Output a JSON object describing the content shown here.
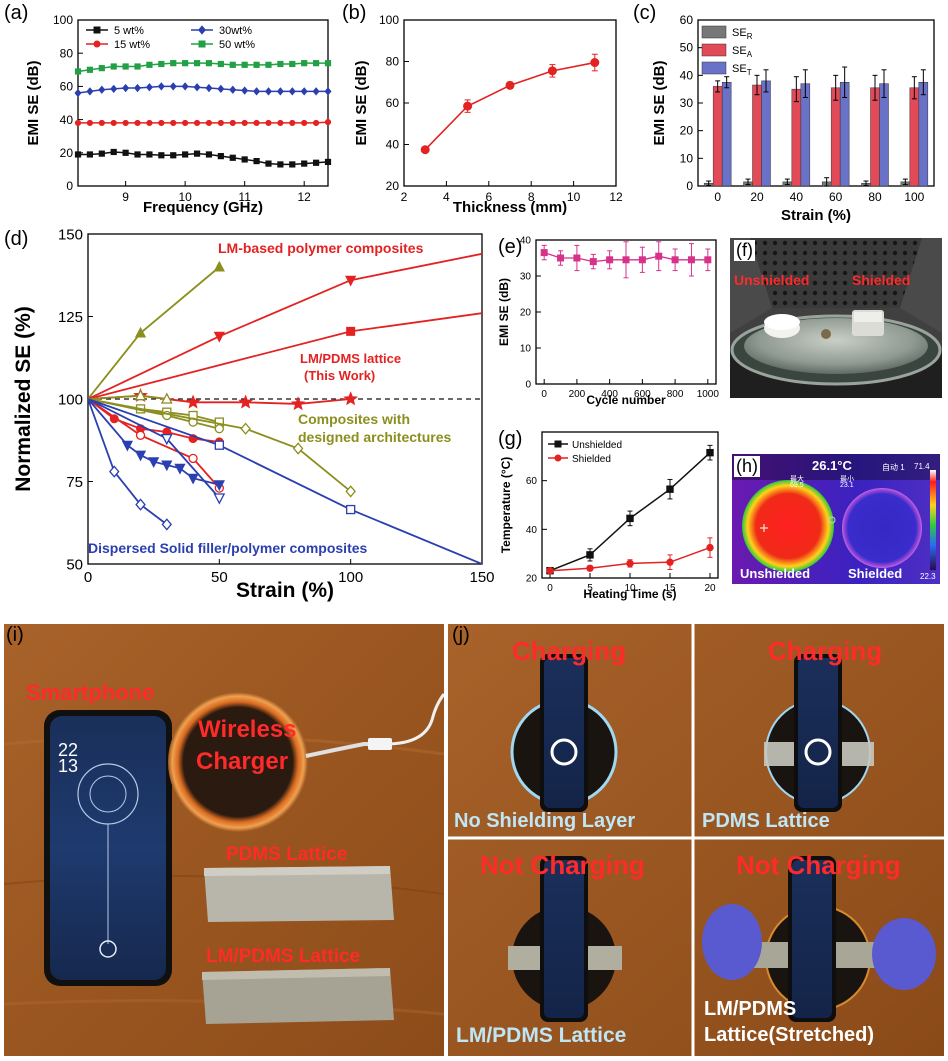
{
  "figure": {
    "panel_letters": [
      "(a)",
      "(b)",
      "(c)",
      "(d)",
      "(e)",
      "(f)",
      "(g)",
      "(h)",
      "(i)",
      "(j)"
    ]
  },
  "chart_data": [
    {
      "id": "a",
      "type": "line",
      "xlabel": "Frequency (GHz)",
      "ylabel": "EMI SE (dB)",
      "xlim": [
        8.2,
        12.4
      ],
      "ylim": [
        0,
        100
      ],
      "xticks": [
        8,
        9,
        10,
        11,
        12
      ],
      "yticks": [
        0,
        20,
        40,
        60,
        80,
        100
      ],
      "legend_placement": "top-left, two columns",
      "x": [
        8.2,
        8.4,
        8.6,
        8.8,
        9.0,
        9.2,
        9.4,
        9.6,
        9.8,
        10.0,
        10.2,
        10.4,
        10.6,
        10.8,
        11.0,
        11.2,
        11.4,
        11.6,
        11.8,
        12.0,
        12.2,
        12.4
      ],
      "series": [
        {
          "name": "5 wt%",
          "color": "#111111",
          "marker": "square",
          "values": [
            19,
            19,
            19.5,
            20.5,
            20,
            19,
            19,
            18.5,
            18.5,
            19,
            19.5,
            19,
            18,
            17,
            16,
            15,
            13.5,
            13,
            13,
            13.5,
            14,
            14.5
          ]
        },
        {
          "name": "15 wt%",
          "color": "#e32222",
          "marker": "circle",
          "values": [
            38,
            38,
            38,
            38,
            38,
            38,
            38,
            38,
            38,
            38,
            38,
            38,
            38,
            38,
            38,
            38,
            38,
            38,
            38,
            38,
            38,
            38.5
          ]
        },
        {
          "name": "30wt%",
          "color": "#2b3fb0",
          "marker": "diamond",
          "values": [
            56,
            57,
            58,
            58.5,
            59,
            59,
            59.5,
            60,
            60,
            60,
            59.5,
            59,
            58.5,
            58,
            57.5,
            57,
            57,
            57,
            57,
            57,
            57,
            57
          ]
        },
        {
          "name": "50 wt%",
          "color": "#22a046",
          "marker": "square",
          "values": [
            69,
            70,
            71,
            72,
            72,
            72,
            73,
            73.5,
            74,
            74,
            74,
            74,
            73.5,
            73,
            73,
            73,
            73,
            73.5,
            73.5,
            74,
            74,
            74
          ]
        }
      ]
    },
    {
      "id": "b",
      "type": "line",
      "xlabel": "Thickness (mm)",
      "ylabel": "EMI SE (dB)",
      "xlim": [
        2,
        12
      ],
      "ylim": [
        20,
        100
      ],
      "xticks": [
        2,
        4,
        6,
        8,
        10,
        12
      ],
      "yticks": [
        20,
        40,
        60,
        80,
        100
      ],
      "series": [
        {
          "name": "",
          "color": "#e32222",
          "marker": "circle",
          "x": [
            3,
            5,
            7,
            9,
            11
          ],
          "values": [
            37.5,
            58.5,
            68.5,
            75.5,
            79.5
          ],
          "errors": [
            0,
            3,
            1.5,
            3,
            4
          ]
        }
      ]
    },
    {
      "id": "c",
      "type": "bar",
      "xlabel": "Strain (%)",
      "ylabel": "EMI SE (dB)",
      "ylim": [
        0,
        60
      ],
      "yticks": [
        0,
        10,
        20,
        30,
        40,
        50,
        60
      ],
      "categories": [
        "0",
        "20",
        "40",
        "60",
        "80",
        "100"
      ],
      "legend_placement": "top-left",
      "series": [
        {
          "name": "SE",
          "subscript": "R",
          "color": "#777777",
          "values": [
            1,
            1.5,
            1.5,
            1.5,
            1,
            1.5
          ],
          "errors": [
            0.8,
            1,
            1,
            1.5,
            0.8,
            1
          ]
        },
        {
          "name": "SE",
          "subscript": "A",
          "color": "#e24a57",
          "values": [
            36,
            36.5,
            35,
            35.5,
            35.5,
            35.5
          ],
          "errors": [
            2,
            3.5,
            4.5,
            4.5,
            4.5,
            4
          ]
        },
        {
          "name": "SE",
          "subscript": "T",
          "color": "#6a72c8",
          "values": [
            37.5,
            38,
            37,
            37.5,
            37,
            37.5
          ],
          "errors": [
            2,
            4,
            5,
            5.5,
            5,
            4.5
          ]
        }
      ]
    },
    {
      "id": "d",
      "type": "line",
      "xlabel": "Strain (%)",
      "ylabel": "Normalized SE (%)",
      "xlim": [
        0,
        150
      ],
      "ylim": [
        50,
        150
      ],
      "xticks": [
        0,
        50,
        100,
        150
      ],
      "yticks": [
        50,
        75,
        100,
        125,
        150
      ],
      "annotations": [
        {
          "text": "LM-based polymer composites",
          "color": "#e32222"
        },
        {
          "text": "LM/PDMS lattice",
          "color": "#e32222"
        },
        {
          "text": "(This Work)",
          "color": "#e32222"
        },
        {
          "text": "Composites with",
          "color": "#8c8f1e"
        },
        {
          "text": "designed architectures",
          "color": "#8c8f1e"
        },
        {
          "text": "Dispersed Solid filler/polymer composites",
          "color": "#2b3fb0"
        }
      ],
      "series": [
        {
          "name": "",
          "color": "#8c8f1e",
          "marker": "triangle-up",
          "x": [
            0,
            20,
            50
          ],
          "values": [
            100,
            120,
            140
          ]
        },
        {
          "name": "",
          "color": "#e32222",
          "marker": "triangle-down",
          "x": [
            0,
            50,
            100,
            150
          ],
          "values": [
            100,
            119,
            136,
            144
          ]
        },
        {
          "name": "",
          "color": "#e32222",
          "marker": "square",
          "x": [
            0,
            100,
            150
          ],
          "values": [
            100,
            120.5,
            126
          ]
        },
        {
          "name": "",
          "color": "#e32222",
          "marker": "star",
          "x": [
            0,
            20,
            40,
            60,
            80,
            100
          ],
          "values": [
            100,
            101,
            99,
            99,
            98.5,
            100
          ]
        },
        {
          "name": "",
          "color": "#8c8f1e",
          "marker": "triangle-up-open",
          "x": [
            0,
            20,
            30
          ],
          "values": [
            100,
            101,
            100
          ]
        },
        {
          "name": "",
          "color": "#8c8f1e",
          "marker": "square-open",
          "x": [
            0,
            20,
            30,
            40,
            50
          ],
          "values": [
            100,
            97,
            96,
            95,
            93
          ]
        },
        {
          "name": "",
          "color": "#8c8f1e",
          "marker": "circle-open",
          "x": [
            0,
            30,
            40,
            50
          ],
          "values": [
            100,
            95,
            93,
            91
          ]
        },
        {
          "name": "",
          "color": "#8c8f1e",
          "marker": "diamond-open",
          "x": [
            0,
            60,
            80,
            100
          ],
          "values": [
            100,
            91,
            85,
            72
          ]
        },
        {
          "name": "",
          "color": "#e32222",
          "marker": "circle",
          "x": [
            0,
            10,
            20,
            30,
            40,
            50
          ],
          "values": [
            100,
            94,
            91,
            90,
            88,
            87
          ]
        },
        {
          "name": "",
          "color": "#e32222",
          "marker": "circle-open",
          "x": [
            0,
            20,
            40,
            50
          ],
          "values": [
            100,
            89,
            82,
            73
          ]
        },
        {
          "name": "",
          "color": "#2b3fb0",
          "marker": "triangle-down",
          "x": [
            0,
            15,
            20,
            25,
            30,
            35,
            40,
            50
          ],
          "values": [
            100,
            86,
            83,
            81,
            80,
            79,
            76,
            74
          ]
        },
        {
          "name": "",
          "color": "#2b3fb0",
          "marker": "triangle-down-open",
          "x": [
            0,
            30,
            50
          ],
          "values": [
            100,
            88,
            70
          ]
        },
        {
          "name": "",
          "color": "#2b3fb0",
          "marker": "square-open",
          "x": [
            0,
            50,
            100,
            150
          ],
          "values": [
            100,
            86,
            66.5,
            50
          ]
        },
        {
          "name": "",
          "color": "#2b3fb0",
          "marker": "diamond-open",
          "x": [
            0,
            10,
            20,
            30
          ],
          "values": [
            100,
            78,
            68,
            62
          ]
        }
      ],
      "reference_line": {
        "y": 100,
        "style": "dashed",
        "color": "#111111"
      }
    },
    {
      "id": "e",
      "type": "line",
      "xlabel": "Cycle number",
      "ylabel": "EMI SE (dB)",
      "xlim": [
        -50,
        1050
      ],
      "ylim": [
        0,
        40
      ],
      "xticks": [
        0,
        200,
        400,
        600,
        800,
        1000
      ],
      "yticks": [
        0,
        10,
        20,
        30,
        40
      ],
      "series": [
        {
          "name": "",
          "color": "#d6328a",
          "marker": "square",
          "x": [
            0,
            100,
            200,
            300,
            400,
            500,
            600,
            700,
            800,
            900,
            1000
          ],
          "values": [
            36.5,
            35,
            35,
            34,
            34.5,
            34.5,
            34.5,
            35.5,
            34.5,
            34.5,
            34.5
          ],
          "errors": [
            2,
            2,
            3.5,
            2,
            2.5,
            5,
            3.5,
            4,
            3,
            4.5,
            3
          ]
        }
      ]
    },
    {
      "id": "g",
      "type": "line",
      "xlabel": "Heating Time (s)",
      "ylabel": "Temperature (°C)",
      "xlim": [
        -1,
        21
      ],
      "ylim": [
        20,
        80
      ],
      "xticks": [
        0,
        5,
        10,
        15,
        20
      ],
      "yticks": [
        20,
        40,
        60
      ],
      "legend_placement": "top-left",
      "series": [
        {
          "name": "Unshielded",
          "color": "#111111",
          "marker": "square",
          "x": [
            0,
            5,
            10,
            15,
            20
          ],
          "values": [
            23,
            29.5,
            44.5,
            56.5,
            71.5
          ],
          "errors": [
            0.5,
            2.5,
            3,
            4,
            3
          ]
        },
        {
          "name": "Shielded",
          "color": "#e32222",
          "marker": "circle",
          "x": [
            0,
            5,
            10,
            15,
            20
          ],
          "values": [
            23,
            24,
            26,
            26.5,
            32.5
          ],
          "errors": [
            0.5,
            1,
            1.5,
            3,
            4
          ]
        }
      ]
    }
  ],
  "photos": {
    "f": {
      "unshielded": "Unshielded",
      "shielded": "Shielded"
    },
    "h": {
      "temp_readout": "26.1°C",
      "mode": "自动 1",
      "max_label": "最大",
      "max_value": "69.5",
      "min_label": "最小",
      "min_value": "23.1",
      "scale_max": "71.4",
      "scale_min": "22.3",
      "unshielded": "Unshielded",
      "shielded": "Shielded"
    },
    "i": {
      "smartphone": "Smartphone",
      "charger_line1": "Wireless",
      "charger_line2": "Charger",
      "pdms": "PDMS Lattice",
      "lm_pdms": "LM/PDMS Lattice",
      "clock": "22\n13"
    },
    "j": {
      "tl_status": "Charging",
      "tl_caption": "No Shielding Layer",
      "tr_status": "Charging",
      "tr_caption": "PDMS Lattice",
      "bl_status": "Not Charging",
      "bl_caption": "LM/PDMS Lattice",
      "br_status": "Not Charging",
      "br_caption_line1": "LM/PDMS",
      "br_caption_line2": "Lattice(Stretched)"
    }
  },
  "colors": {
    "wood": "#9c5a22",
    "red_label": "#ff2a2a",
    "light_blue_label": "#bfe6f5"
  }
}
